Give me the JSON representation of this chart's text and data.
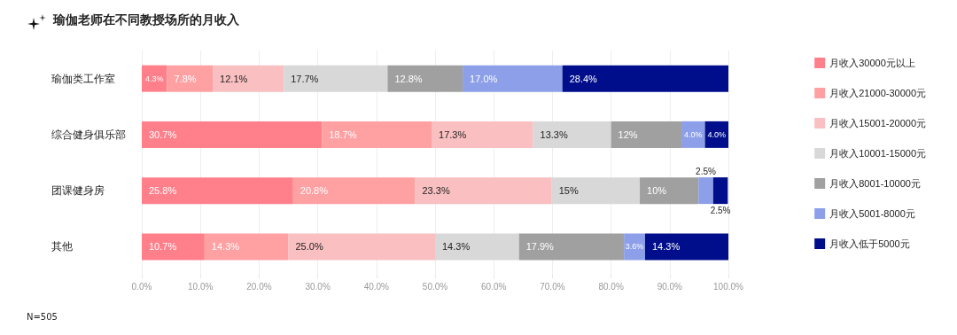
{
  "chart_data": {
    "type": "bar",
    "orientation": "horizontal",
    "stacked": true,
    "title": "瑜伽老师在不同教授场所的月收入",
    "categories": [
      "瑜伽类工作室",
      "综合健身俱乐部",
      "团课健身房",
      "其他"
    ],
    "series": [
      {
        "name": "月收入30000元以上",
        "color": "#ff7f8a",
        "values": [
          4.3,
          30.7,
          25.8,
          10.7
        ],
        "value_labels": [
          "4.3%",
          "30.7%",
          "25.8%",
          "10.7%"
        ]
      },
      {
        "name": "月收入21000-30000元",
        "color": "#ffa0a2",
        "values": [
          7.8,
          18.7,
          20.8,
          14.3
        ],
        "value_labels": [
          "7.8%",
          "18.7%",
          "20.8%",
          "14.3%"
        ]
      },
      {
        "name": "月收入15001-20000元",
        "color": "#f9bfc1",
        "values": [
          12.1,
          17.3,
          23.3,
          25.0
        ],
        "value_labels": [
          "12.1%",
          "17.3%",
          "23.3%",
          "25.0%"
        ]
      },
      {
        "name": "月收入10001-15000元",
        "color": "#d8d8d8",
        "values": [
          17.7,
          13.3,
          15,
          14.3
        ],
        "value_labels": [
          "17.7%",
          "13.3%",
          "15%",
          "14.3%"
        ]
      },
      {
        "name": "月收入8001-10000元",
        "color": "#a0a0a0",
        "values": [
          12.8,
          12,
          10,
          17.9
        ],
        "value_labels": [
          "12.8%",
          "12%",
          "10%",
          "17.9%"
        ]
      },
      {
        "name": "月收入5001-8000元",
        "color": "#8c9fe8",
        "values": [
          17.0,
          4.0,
          2.5,
          3.6
        ],
        "value_labels": [
          "17.0%",
          "4.0%",
          "2.5%",
          "3.6%"
        ]
      },
      {
        "name": "月收入低于5000元",
        "color": "#000e8c",
        "values": [
          28.4,
          4.0,
          2.5,
          14.3
        ],
        "value_labels": [
          "28.4%",
          "4.0%",
          "2.5%",
          "14.3%"
        ]
      }
    ],
    "xlim": [
      0,
      100
    ],
    "xticks": [
      {
        "value": 0,
        "label": "0.0%"
      },
      {
        "value": 10,
        "label": "10.0%"
      },
      {
        "value": 20,
        "label": "20.0%"
      },
      {
        "value": 30,
        "label": "30.0%"
      },
      {
        "value": 40,
        "label": "40.0%"
      },
      {
        "value": 50,
        "label": "50.0%"
      },
      {
        "value": 60,
        "label": "60.0%"
      },
      {
        "value": 70,
        "label": "70.0%"
      },
      {
        "value": 80,
        "label": "80.0%"
      },
      {
        "value": 90,
        "label": "90.0%"
      },
      {
        "value": 100,
        "label": "100.0%"
      }
    ],
    "grid": "x",
    "legend": "right",
    "annotations": [
      "N=505"
    ]
  }
}
